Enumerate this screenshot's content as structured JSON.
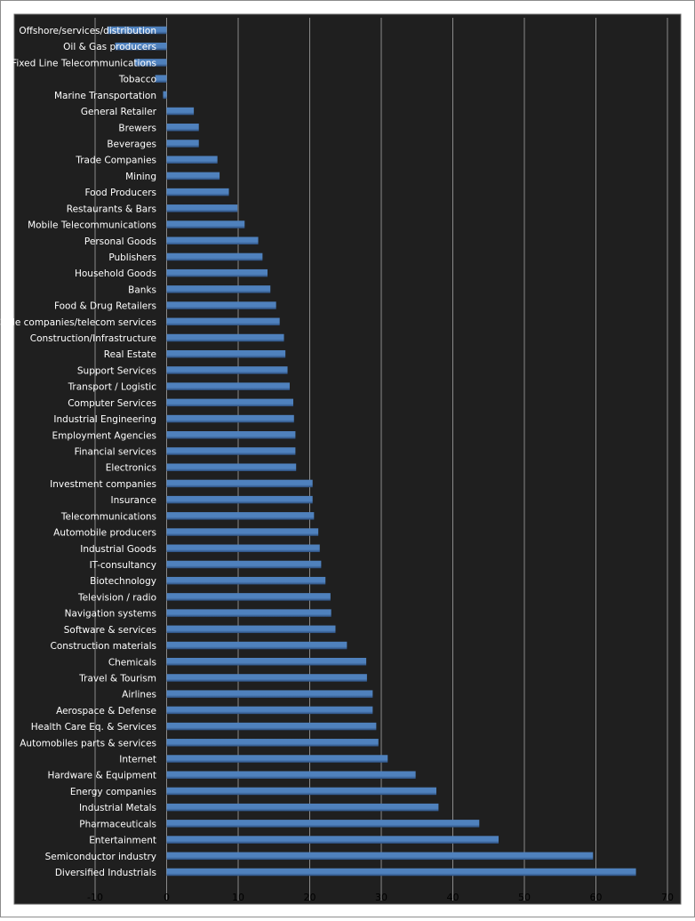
{
  "chart_data": {
    "type": "bar",
    "orientation": "horizontal",
    "title": "",
    "xlabel": "",
    "ylabel": "",
    "xlim": [
      -10,
      70
    ],
    "x_ticks": [
      -10,
      0,
      10,
      20,
      30,
      40,
      50,
      60,
      70
    ],
    "grid": true,
    "legend": "none",
    "colors": {
      "background": "#1f1f1f",
      "plot_border": "#6b6b6b",
      "gridline": "#8a8a8a",
      "bar": "#4f81bd",
      "bar_dark": "#2c4f7f",
      "label": "#ffffff",
      "tick_label": "#000000"
    },
    "categories": [
      "Offshore/services/distribution",
      "Oil & Gas producers",
      "Fixed Line Telecommunications",
      "Tobacco",
      "Marine Transportation",
      "General Retailer",
      "Brewers",
      "Beverages",
      "Trade Companies",
      "Mining",
      "Food Producers",
      "Restaurants & Bars",
      "Mobile Telecommunications",
      "Personal Goods",
      "Publishers",
      "Household Goods",
      "Banks",
      "Food & Drug Retailers",
      "Cable companies/telecom services",
      "Construction/Infrastructure",
      "Real Estate",
      "Support Services",
      "Transport / Logistic",
      "Computer Services",
      "Industrial Engineering",
      "Employment Agencies",
      "Financial services",
      "Electronics",
      "Investment companies",
      "Insurance",
      "Telecommunications",
      "Automobile producers",
      "Industrial Goods",
      "IT-consultancy",
      "Biotechnology",
      "Television / radio",
      "Navigation systems",
      "Software & services",
      "Construction materials",
      "Chemicals",
      "Travel & Tourism",
      "Airlines",
      "Aerospace & Defense",
      "Health Care Eq. & Services",
      "Automobiles parts & services",
      "Internet",
      "Hardware & Equipment",
      "Energy companies",
      "Industrial Metals",
      "Pharmaceuticals",
      "Entertainment",
      "Semiconductor industry",
      "Diversified Industrials"
    ],
    "values": [
      -8.3,
      -7.2,
      -4.5,
      -1.6,
      -0.5,
      3.8,
      4.5,
      4.5,
      7.1,
      7.4,
      8.7,
      9.9,
      10.9,
      12.8,
      13.4,
      14.1,
      14.5,
      15.3,
      15.8,
      16.4,
      16.6,
      16.9,
      17.2,
      17.7,
      17.8,
      18.0,
      18.0,
      18.1,
      20.4,
      20.4,
      20.6,
      21.2,
      21.4,
      21.6,
      22.2,
      22.9,
      23.0,
      23.6,
      25.2,
      27.9,
      28.0,
      28.8,
      28.8,
      29.3,
      29.6,
      30.9,
      34.8,
      37.7,
      38.0,
      43.7,
      46.4,
      59.6,
      65.6
    ]
  }
}
